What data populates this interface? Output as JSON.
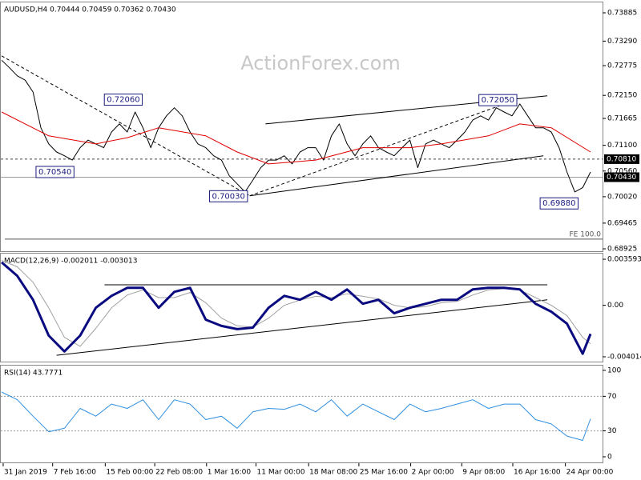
{
  "chart_data": [
    {
      "type": "line",
      "title": "AUDUSD,H4  0.70444 0.70459 0.70362 0.70430",
      "watermark": "ActionForex.com",
      "xlim": [
        0,
        75
      ],
      "ylim": [
        0.68875,
        0.74087
      ],
      "yticks": [
        0.73885,
        {
          "value": 0.7329,
          "label": "0.73290"
        },
        0.72775,
        {
          "value": 0.7215,
          "label": "0.72150"
        },
        0.71665,
        {
          "value": 0.711,
          "label": "0.71100"
        },
        {
          "value": 0.7056,
          "label": "0.70560"
        },
        {
          "value": 0.7002,
          "label": "0.70020"
        },
        0.69465,
        0.68925
      ],
      "series": [
        {
          "name": "AUDUSD",
          "color": "#000000",
          "values": [
            0.7289,
            0.7273,
            0.7256,
            0.7247,
            0.7222,
            0.7147,
            0.7113,
            0.7096,
            0.7088,
            0.7079,
            0.7105,
            0.7121,
            0.7113,
            0.7105,
            0.7138,
            0.7155,
            0.7138,
            0.718,
            0.7147,
            0.7105,
            0.7147,
            0.7172,
            0.7189,
            0.7172,
            0.7138,
            0.7113,
            0.7105,
            0.7088,
            0.7079,
            0.7046,
            0.7029,
            0.7012,
            0.7037,
            0.7063,
            0.7079,
            0.7079,
            0.7088,
            0.7071,
            0.7096,
            0.7105,
            0.7105,
            0.7079,
            0.713,
            0.7155,
            0.7113,
            0.7088,
            0.7113,
            0.713,
            0.7105,
            0.7096,
            0.7088,
            0.7105,
            0.7121,
            0.7063,
            0.7113,
            0.7121,
            0.7113,
            0.7105,
            0.7121,
            0.7138,
            0.7163,
            0.7172,
            0.7163,
            0.7189,
            0.718,
            0.7172,
            0.7197,
            0.7172,
            0.7147,
            0.7147,
            0.7138,
            0.7105,
            0.7054,
            0.7012,
            0.7021,
            0.7054
          ]
        },
        {
          "name": "MA",
          "color": "#e00000",
          "x": [
            0,
            6,
            12,
            16,
            20,
            26,
            30,
            34,
            40,
            46,
            52,
            56,
            62,
            66,
            70,
            75
          ],
          "values": [
            0.718,
            0.713,
            0.7113,
            0.7126,
            0.7147,
            0.713,
            0.7096,
            0.7071,
            0.7079,
            0.7105,
            0.7105,
            0.7113,
            0.713,
            0.7155,
            0.7147,
            0.7096
          ]
        }
      ],
      "lines": [
        {
          "x": [
            33.6,
            69.5
          ],
          "y": [
            0.7155,
            0.7214
          ],
          "dash": false
        },
        {
          "x": [
            31.6,
            69.0
          ],
          "y": [
            0.7004,
            0.7088
          ],
          "dash": false
        },
        {
          "x": [
            0,
            31.6
          ],
          "y": [
            0.7298,
            0.7004
          ],
          "dash": true
        },
        {
          "x": [
            31.6,
            65.4
          ],
          "y": [
            0.7004,
            0.7205
          ],
          "dash": true
        }
      ],
      "price_lines": [
        {
          "value": 0.7081,
          "label": "0.70810",
          "dash": true
        },
        {
          "value": 0.7043,
          "label": "0.70430",
          "dash": false
        }
      ],
      "levels": [
        {
          "value": 0.6913,
          "label": "FE 100.0"
        }
      ],
      "annotations": [
        {
          "x": 15.5,
          "y": 0.7206,
          "label": "0.72060"
        },
        {
          "x": 6.8,
          "y": 0.7054,
          "label": "0.70540"
        },
        {
          "x": 28.9,
          "y": 0.7003,
          "label": "0.70030"
        },
        {
          "x": 63.2,
          "y": 0.7205,
          "label": "0.72050"
        },
        {
          "x": 71,
          "y": 0.6988,
          "label": "0.69880"
        }
      ]
    },
    {
      "type": "line",
      "title": "MACD(12,26,9) -0.002011 -0.003013",
      "xlim": [
        0,
        75
      ],
      "ylim": [
        -0.00439,
        0.00397
      ],
      "yticks": [
        0.003593,
        {
          "value": 0,
          "label": "0.00"
        },
        -0.004014
      ],
      "x": [
        0,
        2,
        4,
        6,
        8,
        10,
        12,
        14,
        16,
        18,
        20,
        22,
        24,
        26,
        28,
        30,
        32,
        34,
        36,
        38,
        40,
        42,
        44,
        46,
        48,
        50,
        52,
        54,
        56,
        58,
        60,
        62,
        64,
        66,
        68,
        70,
        72,
        74,
        75
      ],
      "series": [
        {
          "name": "Signal",
          "color": "#a0a0a0",
          "width": 1,
          "values": [
            0.0035,
            0.003,
            0.0018,
            -0.0002,
            -0.0025,
            -0.0032,
            -0.0018,
            -0.0002,
            0.0008,
            0.0012,
            0.0006,
            0.0006,
            0.001,
            0.0002,
            -0.001,
            -0.0016,
            -0.0017,
            -0.001,
            0,
            0.0004,
            0.0007,
            0.0006,
            0.0009,
            0.0007,
            0.0005,
            0,
            -0.0002,
            -0.0001,
            0.0002,
            0.0003,
            0.0008,
            0.0012,
            0.0013,
            0.0012,
            0.0006,
            0,
            -0.0008,
            -0.0025,
            -0.003
          ]
        },
        {
          "name": "MACD",
          "color": "#0a0a80",
          "width": 3,
          "values": [
            0.00335,
            0.00229,
            0.00043,
            -0.00236,
            -0.0036,
            -0.00236,
            -0.00019,
            0.00074,
            0.00136,
            0.00136,
            -0.00019,
            0.00105,
            0.00136,
            -0.00112,
            -0.00161,
            -0.00186,
            -0.00174,
            -0.00019,
            0.00074,
            0.00043,
            0.00105,
            0.00043,
            0.00124,
            0.00012,
            0.00043,
            -0.00062,
            -0.00019,
            0.00012,
            0.00043,
            0.00043,
            0.00124,
            0.00136,
            0.00136,
            0.00124,
            0.00012,
            -0.0005,
            -0.00143,
            -0.00378,
            -0.00223
          ]
        }
      ],
      "lines": [
        {
          "x": [
            13.1,
            69.5
          ],
          "y": [
            0.0016,
            0.0016
          ],
          "dash": false
        },
        {
          "x": [
            7,
            69.5
          ],
          "y": [
            -0.0039,
            0.00043
          ],
          "dash": false
        }
      ]
    },
    {
      "type": "line",
      "title": "RSI(14) 43.7771",
      "xlim": [
        0,
        75
      ],
      "ylim": [
        -6.5,
        104.6
      ],
      "yticks": [
        100,
        70,
        30,
        0
      ],
      "levels_dotted": [
        70,
        30
      ],
      "x": [
        0,
        2,
        4,
        6,
        8,
        10,
        12,
        14,
        16,
        18,
        20,
        22,
        24,
        26,
        28,
        30,
        32,
        34,
        36,
        38,
        40,
        42,
        44,
        46,
        48,
        50,
        52,
        54,
        56,
        58,
        60,
        62,
        64,
        66,
        68,
        70,
        72,
        74,
        75
      ],
      "series": [
        {
          "name": "RSI",
          "color": "#2f8fe0",
          "width": 1,
          "values": [
            75,
            66,
            47,
            29,
            33,
            56,
            47,
            61,
            56,
            66,
            43,
            66,
            61,
            43,
            47,
            33,
            52,
            56,
            55,
            61,
            52,
            66,
            47,
            61,
            52,
            43,
            61,
            52,
            56,
            61,
            66,
            56,
            61,
            61,
            43,
            38,
            24,
            19,
            44
          ]
        }
      ],
      "xticks": [
        {
          "value": 0.2,
          "label": "31 Jan 2019"
        },
        {
          "value": 6.5,
          "label": "7 Feb 16:00"
        },
        {
          "value": 13.2,
          "label": "15 Feb 00:00"
        },
        {
          "value": 19.5,
          "label": "22 Feb 08:00"
        },
        {
          "value": 26.1,
          "label": "1 Mar 16:00"
        },
        {
          "value": 32.4,
          "label": "11 Mar 00:00"
        },
        {
          "value": 39.1,
          "label": "18 Mar 08:00"
        },
        {
          "value": 45.5,
          "label": "25 Mar 16:00"
        },
        {
          "value": 52.1,
          "label": "2 Apr 00:00"
        },
        {
          "value": 58.6,
          "label": "9 Apr 08:00"
        },
        {
          "value": 65.1,
          "label": "16 Apr 16:00"
        },
        {
          "value": 71.8,
          "label": "24 Apr 00:00"
        }
      ]
    }
  ]
}
